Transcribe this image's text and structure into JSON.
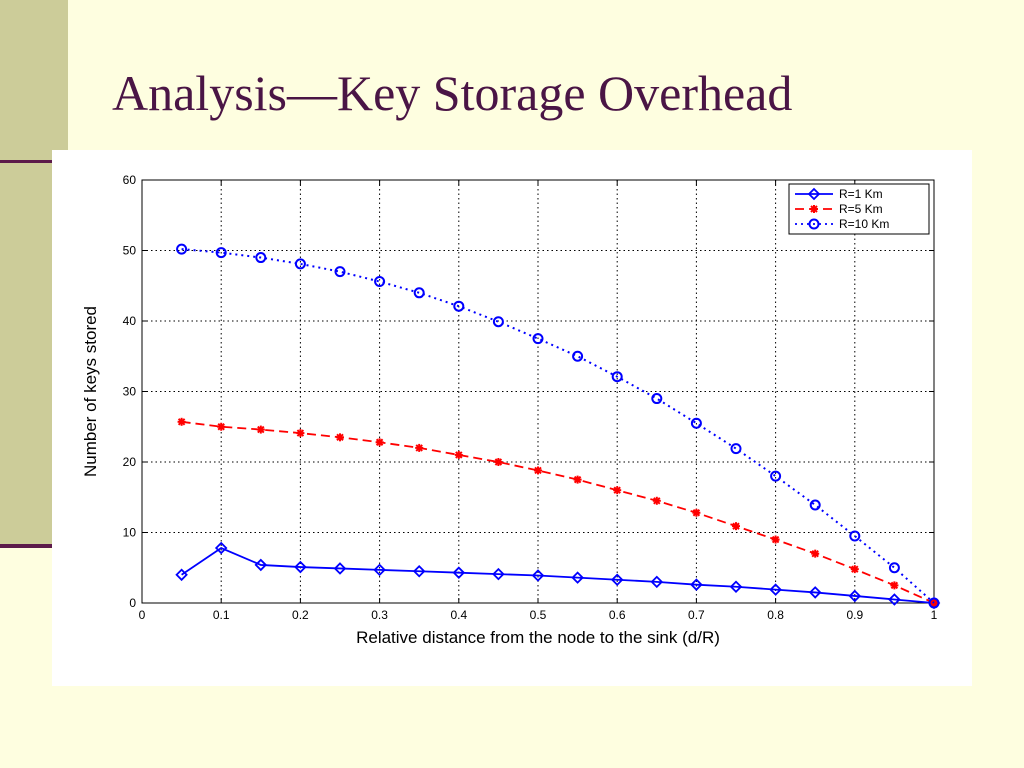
{
  "slide": {
    "title": "Analysis—Key Storage Overhead",
    "colors": {
      "background": "#fefee0",
      "accent_bar": "#cccc99",
      "title": "#4a1545",
      "rule": "#5c1a4a"
    }
  },
  "chart_data": {
    "type": "line",
    "title": "",
    "xlabel": "Relative distance from the node to the sink (d/R)",
    "ylabel": "Number of keys stored",
    "xlim": [
      0,
      1
    ],
    "ylim": [
      0,
      60
    ],
    "xticks": [
      0,
      0.1,
      0.2,
      0.3,
      0.4,
      0.5,
      0.6,
      0.7,
      0.8,
      0.9,
      1
    ],
    "xtick_labels": [
      "0",
      "0.1",
      "0.2",
      "0.3",
      "0.4",
      "0.5",
      "0.6",
      "0.7",
      "0.8",
      "0.9",
      "1"
    ],
    "yticks": [
      0,
      10,
      20,
      30,
      40,
      50,
      60
    ],
    "ytick_labels": [
      "0",
      "10",
      "20",
      "30",
      "40",
      "50",
      "60"
    ],
    "grid": true,
    "legend_position": "top-right",
    "series": [
      {
        "name": "R=1 Km",
        "color": "#0000ff",
        "line_style": "solid",
        "marker": "diamond",
        "x": [
          0.05,
          0.1,
          0.15,
          0.2,
          0.25,
          0.3,
          0.35,
          0.4,
          0.45,
          0.5,
          0.55,
          0.6,
          0.65,
          0.7,
          0.75,
          0.8,
          0.85,
          0.9,
          0.95,
          1.0
        ],
        "y": [
          4,
          7.8,
          5.4,
          5.1,
          4.9,
          4.7,
          4.5,
          4.3,
          4.1,
          3.9,
          3.6,
          3.3,
          3.0,
          2.6,
          2.3,
          1.9,
          1.5,
          1.0,
          0.5,
          0
        ]
      },
      {
        "name": "R=5 Km",
        "color": "#ff0000",
        "line_style": "dashed",
        "marker": "star",
        "x": [
          0.05,
          0.1,
          0.15,
          0.2,
          0.25,
          0.3,
          0.35,
          0.4,
          0.45,
          0.5,
          0.55,
          0.6,
          0.65,
          0.7,
          0.75,
          0.8,
          0.85,
          0.9,
          0.95,
          1.0
        ],
        "y": [
          25.7,
          25.0,
          24.6,
          24.1,
          23.5,
          22.8,
          22.0,
          21.0,
          20.0,
          18.8,
          17.5,
          16.0,
          14.5,
          12.8,
          10.9,
          9.0,
          7.0,
          4.8,
          2.5,
          0
        ]
      },
      {
        "name": "R=10 Km",
        "color": "#0000ff",
        "line_style": "dotted",
        "marker": "circle",
        "x": [
          0.05,
          0.1,
          0.15,
          0.2,
          0.25,
          0.3,
          0.35,
          0.4,
          0.45,
          0.5,
          0.55,
          0.6,
          0.65,
          0.7,
          0.75,
          0.8,
          0.85,
          0.9,
          0.95,
          1.0
        ],
        "y": [
          50.2,
          49.7,
          49.0,
          48.1,
          47.0,
          45.6,
          44.0,
          42.1,
          39.9,
          37.5,
          35.0,
          32.1,
          29.0,
          25.5,
          21.9,
          18.0,
          13.9,
          9.5,
          5.0,
          0
        ]
      }
    ]
  }
}
